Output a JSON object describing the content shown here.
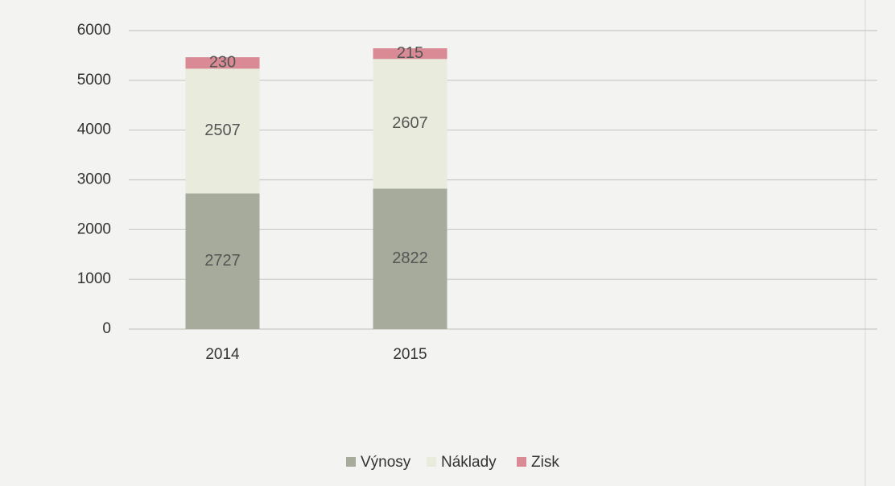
{
  "chart_data": {
    "type": "stacked_bar",
    "categories": [
      "2014",
      "2015"
    ],
    "series": [
      {
        "name": "Výnosy",
        "color": "#a6ab9c",
        "values": [
          2727,
          2822
        ]
      },
      {
        "name": "Náklady",
        "color": "#e9ecdd",
        "values": [
          2507,
          2607
        ]
      },
      {
        "name": "Zisk",
        "color": "#d98a94",
        "values": [
          230,
          215
        ]
      }
    ],
    "ylim": [
      0,
      6000
    ],
    "yticks": [
      0,
      1000,
      2000,
      3000,
      4000,
      5000,
      6000
    ],
    "grid": true,
    "legend": "bottom"
  }
}
